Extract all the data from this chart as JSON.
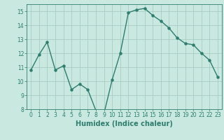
{
  "x": [
    0,
    1,
    2,
    3,
    4,
    5,
    6,
    7,
    8,
    9,
    10,
    11,
    12,
    13,
    14,
    15,
    16,
    17,
    18,
    19,
    20,
    21,
    22,
    23
  ],
  "y": [
    10.8,
    11.9,
    12.8,
    10.8,
    11.1,
    9.4,
    9.8,
    9.4,
    7.9,
    7.7,
    10.1,
    12.0,
    14.9,
    15.1,
    15.2,
    14.7,
    14.3,
    13.8,
    13.1,
    12.7,
    12.6,
    12.0,
    11.5,
    10.3
  ],
  "line_color": "#2e7d6e",
  "marker": "o",
  "markersize": 2.2,
  "linewidth": 1.0,
  "bg_color": "#c8e8e0",
  "grid_color": "#a8ccc4",
  "xlabel": "Humidex (Indice chaleur)",
  "xlim": [
    -0.5,
    23.5
  ],
  "ylim": [
    8,
    15.5
  ],
  "yticks": [
    8,
    9,
    10,
    11,
    12,
    13,
    14,
    15
  ],
  "xticks": [
    0,
    1,
    2,
    3,
    4,
    5,
    6,
    7,
    8,
    9,
    10,
    11,
    12,
    13,
    14,
    15,
    16,
    17,
    18,
    19,
    20,
    21,
    22,
    23
  ],
  "tick_fontsize": 5.5,
  "xlabel_fontsize": 7.0
}
